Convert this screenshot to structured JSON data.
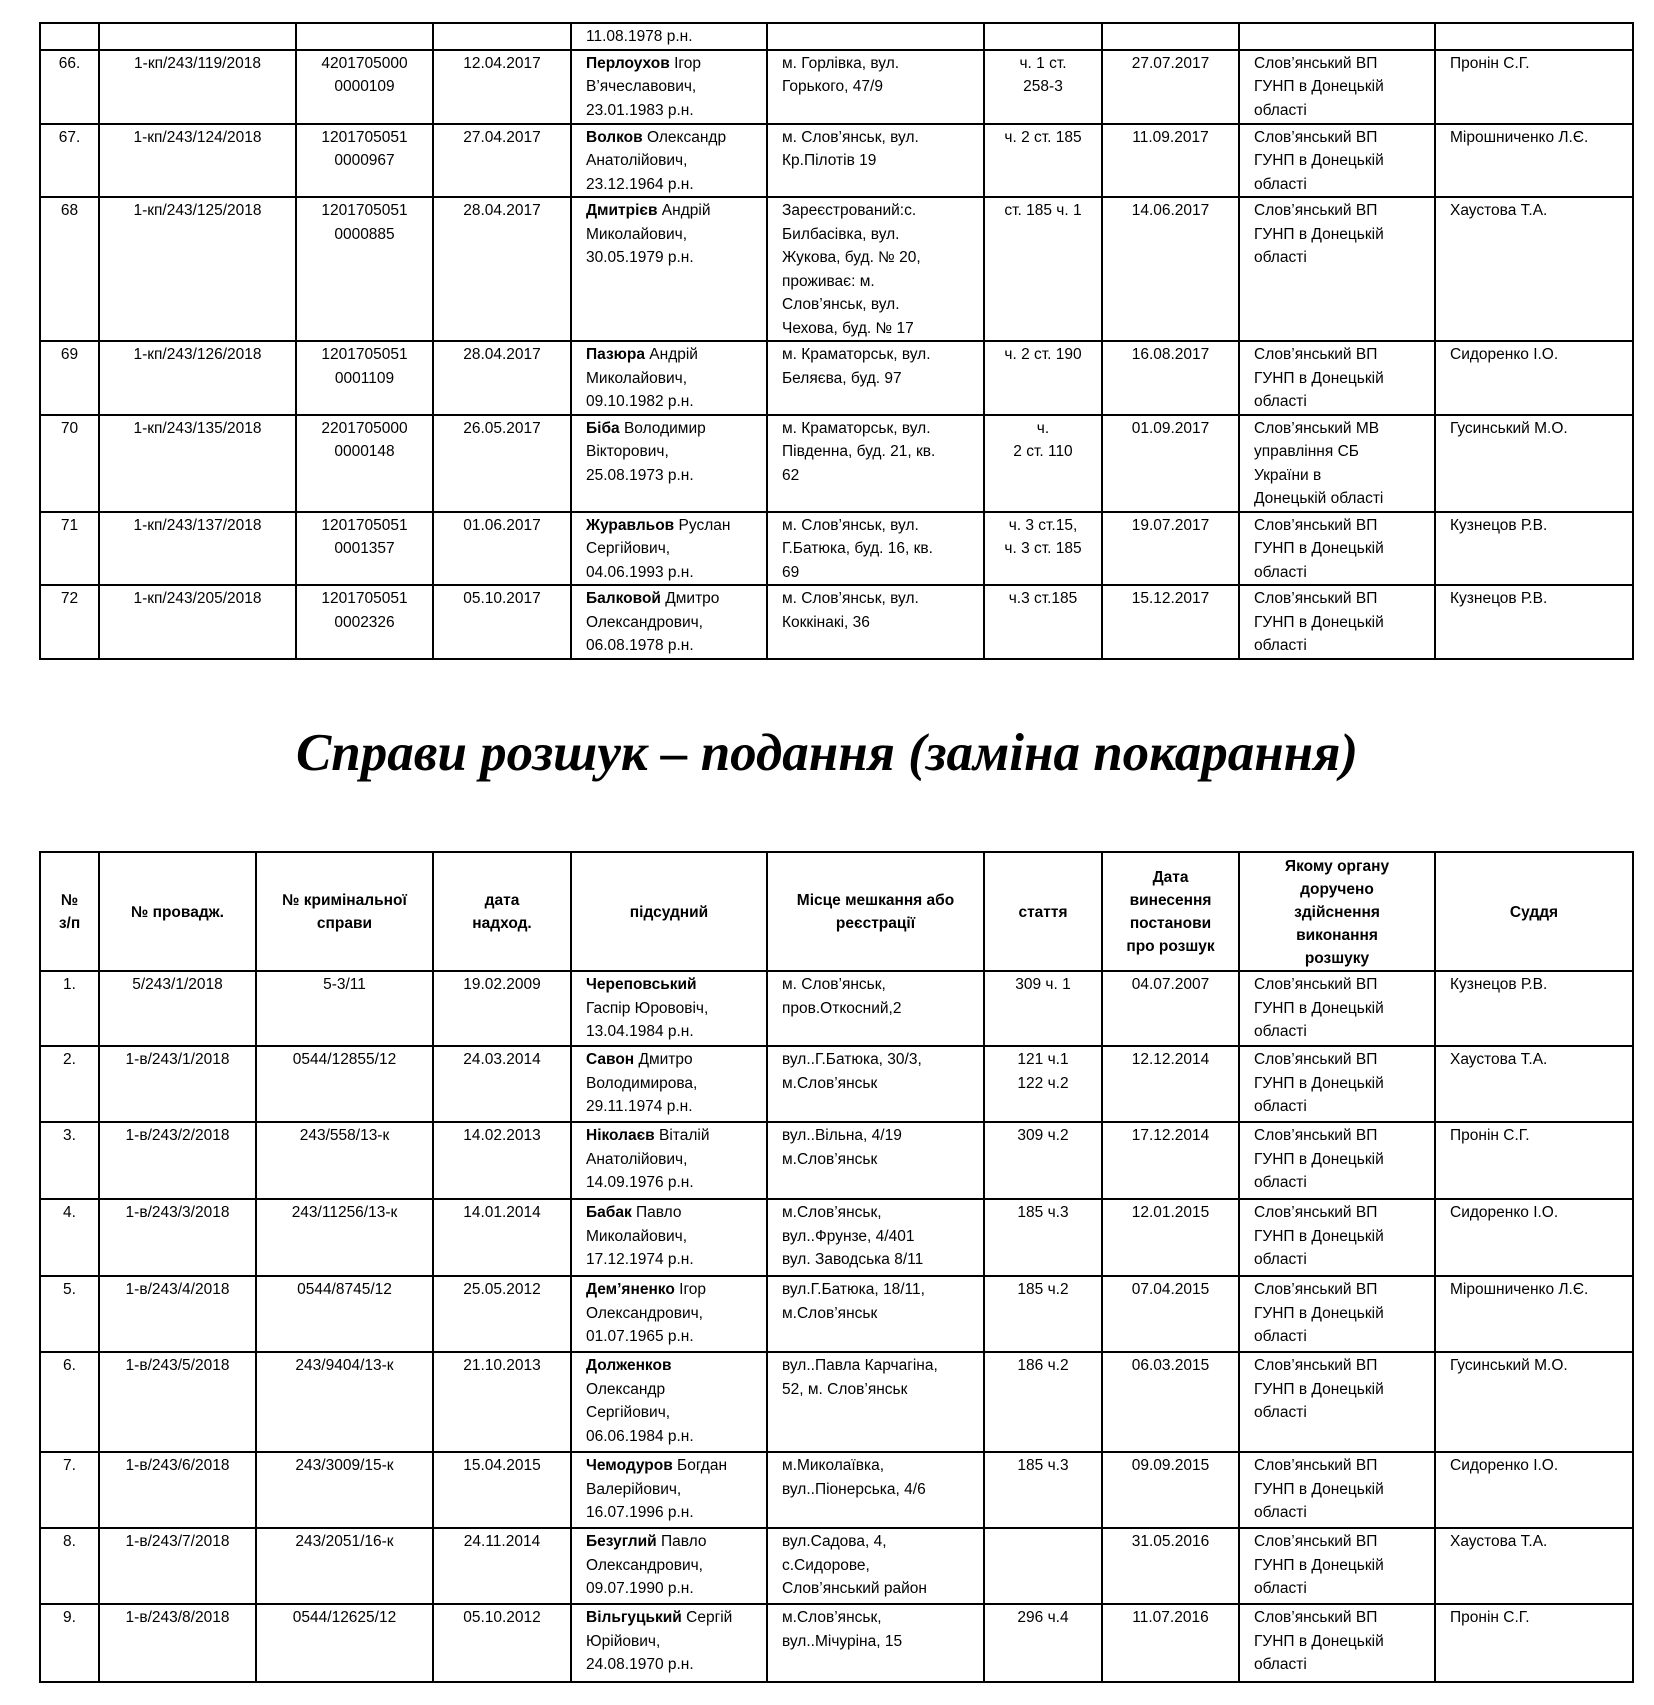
{
  "table1": {
    "rows": [
      {
        "num": "",
        "case": "",
        "crim": "",
        "date": "",
        "name_bold": "",
        "name_rest": "11.08.1978 р.н.",
        "address": "",
        "article": "",
        "ordered": "",
        "organ": "",
        "judge": ""
      },
      {
        "num": "66.",
        "case": "1-кп/243/119/2018",
        "crim": "4201705000\n0000109",
        "date": "12.04.2017",
        "name_bold": "Перлоухов",
        "name_rest": " Ігор\nВ’ячеславович,\n23.01.1983 р.н.",
        "address": "м. Горлівка, вул.\nГорького, 47/9",
        "article": "ч. 1 ст.\n258-3",
        "ordered": "27.07.2017",
        "organ": "Слов’янський ВП\nГУНП в Донецькій\nобласті",
        "judge": "Пронін С.Г."
      },
      {
        "num": "67.",
        "case": "1-кп/243/124/2018",
        "crim": "1201705051\n0000967",
        "date": "27.04.2017",
        "name_bold": "Волков",
        "name_rest": " Олександр\nАнатолійович,\n23.12.1964 р.н.",
        "address": "м. Слов’янськ, вул.\nКр.Пілотів 19",
        "article": "ч. 2 ст. 185",
        "ordered": "11.09.2017",
        "organ": "Слов’янський ВП\nГУНП в Донецькій\nобласті",
        "judge": "Мірошниченко Л.Є."
      },
      {
        "num": "68",
        "case": "1-кп/243/125/2018",
        "crim": "1201705051\n0000885",
        "date": "28.04.2017",
        "name_bold": "Дмитрієв",
        "name_rest": " Андрій\nМиколайович,\n30.05.1979 р.н.",
        "address": "Зареєстрований:с.\nБилбасівка, вул.\nЖукова, буд. № 20,\nпроживає: м.\nСлов’янськ,  вул.\nЧехова,  буд. № 17",
        "article": "ст. 185 ч. 1",
        "ordered": "14.06.2017",
        "organ": "Слов’янський ВП\nГУНП в Донецькій\nобласті",
        "judge": "Хаустова Т.А."
      },
      {
        "num": "69",
        "case": "1-кп/243/126/2018",
        "crim": "1201705051\n0001109",
        "date": "28.04.2017",
        "name_bold": "Пазюра",
        "name_rest": " Андрій\nМиколайович,\n09.10.1982 р.н.",
        "address": "м. Краматорськ, вул.\nБеляєва, буд. 97",
        "article": "ч. 2 ст. 190",
        "ordered": "16.08.2017",
        "organ": "Слов’янський ВП\nГУНП в Донецькій\nобласті",
        "judge": "Сидоренко І.О."
      },
      {
        "num": "70",
        "case": "1-кп/243/135/2018",
        "crim": "2201705000\n0000148",
        "date": "26.05.2017",
        "name_bold": "Біба",
        "name_rest": " Володимир\nВікторович,\n25.08.1973 р.н.",
        "address": "м. Краматорськ, вул.\nПівденна, буд. 21, кв.\n62",
        "article": "ч.\n2  ст.  110",
        "ordered": "01.09.2017",
        "organ": "Слов’янський МВ\nуправління СБ\nУкраїни в\nДонецькій області",
        "judge": "Гусинський М.О."
      },
      {
        "num": "71",
        "case": "1-кп/243/137/2018",
        "crim": "1201705051\n0001357",
        "date": "01.06.2017",
        "name_bold": "Журавльов",
        "name_rest": " Руслан\nСергійович,\n04.06.1993 р.н.",
        "address": "м. Слов’янськ, вул.\nГ.Батюка, буд. 16, кв.\n69",
        "article": "ч. 3 ст.15,\nч. 3 ст. 185",
        "ordered": "19.07.2017",
        "organ": "Слов’янський ВП\nГУНП в Донецькій\nобласті",
        "judge": "Кузнецов Р.В."
      },
      {
        "num": "72",
        "case": "1-кп/243/205/2018",
        "crim": "1201705051\n0002326",
        "date": "05.10.2017",
        "name_bold": "Балковой",
        "name_rest": " Дмитро\nОлександрович,\n06.08.1978 р.н.",
        "address": "м. Слов’янськ, вул.\nКоккінакі, 36",
        "article": "ч.3 ст.185",
        "ordered": "15.12.2017",
        "organ": "Слов’янський ВП\nГУНП в Донецькій\nобласті",
        "judge": "Кузнецов Р.В."
      }
    ]
  },
  "section_title": "Справи розшук – подання (заміна покарання)",
  "table2": {
    "headers": [
      "№\nз/п",
      "№ провадж.",
      "№ кримінальної\nсправи",
      "дата\nнадход.",
      "підсудний",
      "Місце мешкання або\nреєстрації",
      "стаття",
      "Дата\nвинесення\nпостанови\nпро розшук",
      "Якому органу\nдоручено\nздійснення\nвиконання\nрозшуку",
      "Суддя"
    ],
    "rows": [
      {
        "num": "1.",
        "case": "5/243/1/2018",
        "crim": "5-3/11",
        "date": "19.02.2009",
        "name_bold": "Череповський",
        "name_rest": "\nГаспір Юрововіч,\n13.04.1984 р.н.",
        "address": "м. Слов’янськ,\nпров.Откосний,2",
        "article": "309 ч. 1",
        "ordered": "04.07.2007",
        "organ": "Слов’янський ВП\nГУНП в Донецькій\nобласті",
        "judge": "Кузнецов Р.В."
      },
      {
        "num": "2.",
        "case": "1-в/243/1/2018",
        "crim": "0544/12855/12",
        "date": "24.03.2014",
        "name_bold": "Савон",
        "name_rest": " Дмитро\nВолодимирова,\n29.11.1974 р.н.",
        "address": "вул..Г.Батюка, 30/3,\nм.Слов’янськ",
        "article": "121 ч.1\n122 ч.2",
        "ordered": "12.12.2014",
        "organ": "Слов’янський ВП\nГУНП в Донецькій\nобласті",
        "judge": "Хаустова Т.А."
      },
      {
        "num": "3.",
        "case": "1-в/243/2/2018",
        "crim": "243/558/13-к",
        "date": "14.02.2013",
        "name_bold": "Ніколаєв",
        "name_rest": " Віталій\nАнатолійович,\n14.09.1976 р.н.",
        "address": "вул..Вільна, 4/19\nм.Слов’янськ",
        "article": "309 ч.2",
        "ordered": "17.12.2014",
        "organ": "Слов’янський ВП\nГУНП в Донецькій\nобласті",
        "judge": "Пронін С.Г."
      },
      {
        "num": "4.",
        "case": "1-в/243/3/2018",
        "crim": "243/11256/13-к",
        "date": "14.01.2014",
        "name_bold": "Бабак",
        "name_rest": " Павло\nМиколайович,\n17.12.1974 р.н.",
        "address": "м.Слов’янськ,\nвул..Фрунзе, 4/401\nвул. Заводська 8/11",
        "article": "185 ч.3",
        "ordered": "12.01.2015",
        "organ": "Слов’янський ВП\nГУНП в Донецькій\nобласті",
        "judge": "Сидоренко І.О."
      },
      {
        "num": "5.",
        "case": "1-в/243/4/2018",
        "crim": "0544/8745/12",
        "date": "25.05.2012",
        "name_bold": "Дем’яненко",
        "name_rest": " Ігор\nОлександрович,\n01.07.1965 р.н.",
        "address": "вул.Г.Батюка, 18/11,\nм.Слов’янськ",
        "article": "185 ч.2",
        "ordered": "07.04.2015",
        "organ": "Слов’янський ВП\nГУНП в Донецькій\nобласті",
        "judge": "Мірошниченко Л.Є."
      },
      {
        "num": "6.",
        "case": "1-в/243/5/2018",
        "crim": "243/9404/13-к",
        "date": "21.10.2013",
        "name_bold": "Долженков",
        "name_rest": "\nОлександр\nСергійович,\n06.06.1984 р.н.",
        "address": "вул..Павла Карчагіна,\n52, м. Слов’янськ",
        "article": "186 ч.2",
        "ordered": "06.03.2015",
        "organ": "Слов’янський ВП\nГУНП в Донецькій\nобласті",
        "judge": "Гусинський М.О."
      },
      {
        "num": "7.",
        "case": "1-в/243/6/2018",
        "crim": "243/3009/15-к",
        "date": "15.04.2015",
        "name_bold": "Чемодуров",
        "name_rest": " Богдан\nВалерійович,\n16.07.1996 р.н.",
        "address": "м.Миколаївка,\nвул..Піонерська, 4/6",
        "article": "185 ч.3",
        "ordered": "09.09.2015",
        "organ": "Слов’янський ВП\nГУНП в Донецькій\nобласті",
        "judge": "Сидоренко І.О."
      },
      {
        "num": "8.",
        "case": "1-в/243/7/2018",
        "crim": "243/2051/16-к",
        "date": "24.11.2014",
        "name_bold": "Безуглий",
        "name_rest": " Павло\nОлександрович,\n09.07.1990 р.н.",
        "address": "вул.Садова, 4,\nс.Сидорове,\nСлов’янський район",
        "article": "",
        "ordered": "31.05.2016",
        "organ": "Слов’янський ВП\nГУНП в Донецькій\nобласті",
        "judge": "Хаустова Т.А."
      },
      {
        "num": "9.",
        "case": "1-в/243/8/2018",
        "crim": "0544/12625/12",
        "date": "05.10.2012",
        "name_bold": "Вільгуцький",
        "name_rest": " Сергій\nЮрійович,\n24.08.1970 р.н.",
        "address": "м.Слов’янськ,\nвул..Мічуріна, 15",
        "article": "296 ч.4",
        "ordered": "11.07.2016",
        "organ": "Слов’янський ВП\nГУНП в Донецькій\nобласті",
        "judge": "Пронін С.Г."
      }
    ]
  }
}
